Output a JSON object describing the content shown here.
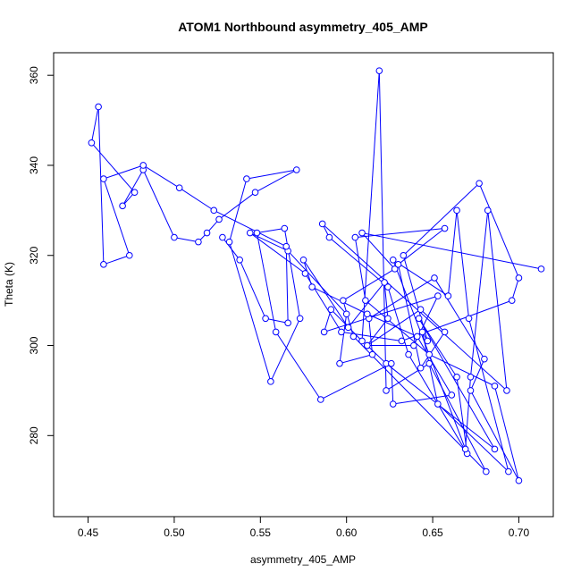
{
  "chart_data": {
    "type": "line",
    "title": "ATOM1 Northbound asymmetry_405_AMP",
    "xlabel": "asymmetry_405_AMP",
    "ylabel": "Theta (K)",
    "xlim": [
      0.43,
      0.72
    ],
    "ylim": [
      262,
      365
    ],
    "xticks": [
      0.45,
      0.5,
      0.55,
      0.6,
      0.65,
      0.7
    ],
    "xtick_labels": [
      "0.45",
      "0.50",
      "0.55",
      "0.60",
      "0.65",
      "0.70"
    ],
    "yticks": [
      280,
      300,
      320,
      340,
      360
    ],
    "ytick_labels": [
      "280",
      "300",
      "320",
      "340",
      "360"
    ],
    "grid": false,
    "legend": "none",
    "series_color": "#0000ff",
    "marker": "open-circle",
    "points": [
      [
        0.713,
        317
      ],
      [
        0.609,
        325
      ],
      [
        0.628,
        317
      ],
      [
        0.598,
        310
      ],
      [
        0.604,
        302
      ],
      [
        0.681,
        272
      ],
      [
        0.648,
        296
      ],
      [
        0.623,
        290
      ],
      [
        0.619,
        361
      ],
      [
        0.609,
        301
      ],
      [
        0.591,
        308
      ],
      [
        0.587,
        303
      ],
      [
        0.653,
        311
      ],
      [
        0.639,
        300
      ],
      [
        0.612,
        300
      ],
      [
        0.623,
        296
      ],
      [
        0.686,
        277
      ],
      [
        0.642,
        306
      ],
      [
        0.664,
        293
      ],
      [
        0.67,
        276
      ],
      [
        0.636,
        298
      ],
      [
        0.624,
        313
      ],
      [
        0.59,
        324
      ],
      [
        0.586,
        327
      ],
      [
        0.693,
        290
      ],
      [
        0.682,
        330
      ],
      [
        0.672,
        293
      ],
      [
        0.669,
        277
      ],
      [
        0.627,
        319
      ],
      [
        0.659,
        311
      ],
      [
        0.664,
        330
      ],
      [
        0.671,
        306
      ],
      [
        0.694,
        272
      ],
      [
        0.653,
        287
      ],
      [
        0.644,
        303
      ],
      [
        0.647,
        301
      ],
      [
        0.633,
        320
      ],
      [
        0.677,
        336
      ],
      [
        0.7,
        315
      ],
      [
        0.696,
        310
      ],
      [
        0.632,
        301
      ],
      [
        0.597,
        303
      ],
      [
        0.576,
        316
      ],
      [
        0.544,
        325
      ],
      [
        0.566,
        321
      ],
      [
        0.6,
        307
      ],
      [
        0.596,
        296
      ],
      [
        0.615,
        298
      ],
      [
        0.613,
        306
      ],
      [
        0.651,
        315
      ],
      [
        0.68,
        297
      ],
      [
        0.672,
        290
      ],
      [
        0.7,
        270
      ],
      [
        0.686,
        291
      ],
      [
        0.648,
        298
      ],
      [
        0.611,
        310
      ],
      [
        0.605,
        324
      ],
      [
        0.657,
        326
      ],
      [
        0.63,
        318
      ],
      [
        0.643,
        295
      ],
      [
        0.657,
        303
      ],
      [
        0.643,
        308
      ],
      [
        0.612,
        300
      ],
      [
        0.624,
        306
      ],
      [
        0.622,
        314
      ],
      [
        0.601,
        304
      ],
      [
        0.575,
        319
      ],
      [
        0.58,
        313
      ],
      [
        0.612,
        307
      ],
      [
        0.641,
        302
      ],
      [
        0.661,
        289
      ],
      [
        0.627,
        287
      ],
      [
        0.626,
        296
      ],
      [
        0.585,
        288
      ],
      [
        0.559,
        303
      ],
      [
        0.548,
        325
      ],
      [
        0.564,
        326
      ],
      [
        0.573,
        306
      ],
      [
        0.556,
        292
      ],
      [
        0.532,
        323
      ],
      [
        0.542,
        337
      ],
      [
        0.571,
        339
      ],
      [
        0.547,
        334
      ],
      [
        0.526,
        328
      ],
      [
        0.519,
        325
      ],
      [
        0.514,
        323
      ],
      [
        0.5,
        324
      ],
      [
        0.482,
        339
      ],
      [
        0.47,
        331
      ],
      [
        0.477,
        334
      ],
      [
        0.452,
        345
      ],
      [
        0.456,
        353
      ],
      [
        0.459,
        318
      ],
      [
        0.474,
        320
      ],
      [
        0.459,
        337
      ],
      [
        0.482,
        340
      ],
      [
        0.503,
        335
      ],
      [
        0.523,
        330
      ],
      [
        0.565,
        322
      ],
      [
        0.566,
        305
      ],
      [
        0.553,
        306
      ],
      [
        0.538,
        319
      ],
      [
        0.528,
        324
      ]
    ]
  }
}
